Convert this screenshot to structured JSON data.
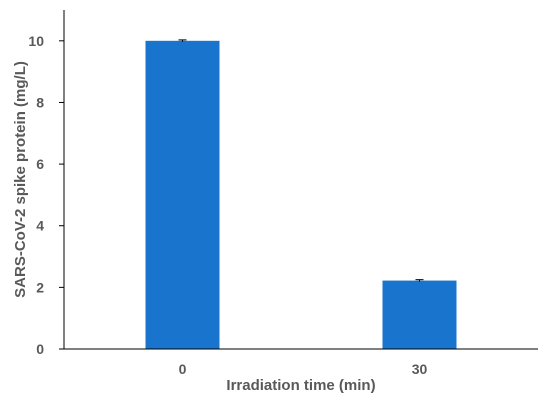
{
  "chart_data": {
    "type": "bar",
    "categories": [
      "0",
      "30"
    ],
    "values": [
      10.0,
      2.22
    ],
    "errors": [
      0.03,
      0.03
    ],
    "title": "",
    "xlabel": "Irradiation time (min)",
    "ylabel": "SARS-CoV-2 spike protein (mg/L)",
    "ylim": [
      0,
      11
    ],
    "yticks": [
      0,
      2,
      4,
      6,
      8,
      10
    ],
    "grid": false,
    "legend": "none",
    "colors": {
      "bar": "#1874CD",
      "axis": "#000000",
      "text": "#595959"
    }
  }
}
